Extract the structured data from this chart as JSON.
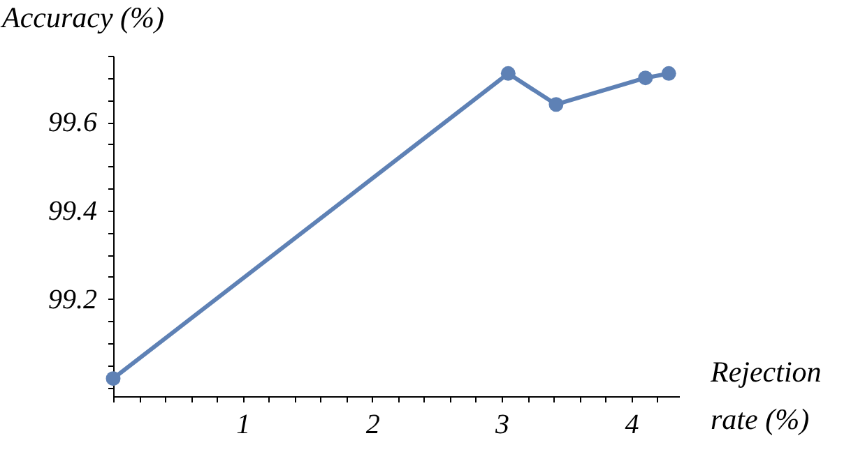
{
  "chart_data": {
    "type": "line",
    "xlabel": "Rejection rate (%)",
    "ylabel": "Accuracy (%)",
    "x": [
      0,
      3.05,
      3.42,
      4.11,
      4.29
    ],
    "series": [
      {
        "color": "#5e81b5",
        "values": [
          99.02,
          99.71,
          99.64,
          99.7,
          99.71
        ]
      }
    ],
    "xlim": [
      0,
      4.37
    ],
    "ylim": [
      98.98,
      99.75
    ],
    "xticks": [
      {
        "value": 0,
        "label": null
      },
      {
        "value": 0.2,
        "label": null
      },
      {
        "value": 0.4,
        "label": null
      },
      {
        "value": 0.6,
        "label": null
      },
      {
        "value": 0.8,
        "label": null
      },
      1,
      {
        "value": 1.2,
        "label": null
      },
      {
        "value": 1.4,
        "label": null
      },
      {
        "value": 1.6,
        "label": null
      },
      {
        "value": 1.8,
        "label": null
      },
      2,
      {
        "value": 2.2,
        "label": null
      },
      {
        "value": 2.4,
        "label": null
      },
      {
        "value": 2.6,
        "label": null
      },
      {
        "value": 2.8,
        "label": null
      },
      3,
      {
        "value": 3.2,
        "label": null
      },
      {
        "value": 3.4,
        "label": null
      },
      {
        "value": 3.6,
        "label": null
      },
      {
        "value": 3.8,
        "label": null
      },
      4,
      {
        "value": 4.2,
        "label": null
      }
    ],
    "yticks": [
      {
        "value": 99.0,
        "label": null
      },
      {
        "value": 99.05,
        "label": null
      },
      {
        "value": 99.1,
        "label": null
      },
      {
        "value": 99.15,
        "label": null
      },
      99.2,
      {
        "value": 99.25,
        "label": null
      },
      {
        "value": 99.3,
        "label": null
      },
      {
        "value": 99.35,
        "label": null
      },
      99.4,
      {
        "value": 99.45,
        "label": null
      },
      {
        "value": 99.5,
        "label": null
      },
      {
        "value": 99.55,
        "label": null
      },
      99.6,
      {
        "value": 99.65,
        "label": null
      },
      {
        "value": 99.7,
        "label": null
      },
      {
        "value": 99.75,
        "label": null
      }
    ],
    "grid": false,
    "marker": "circle",
    "line_style": "solid"
  }
}
